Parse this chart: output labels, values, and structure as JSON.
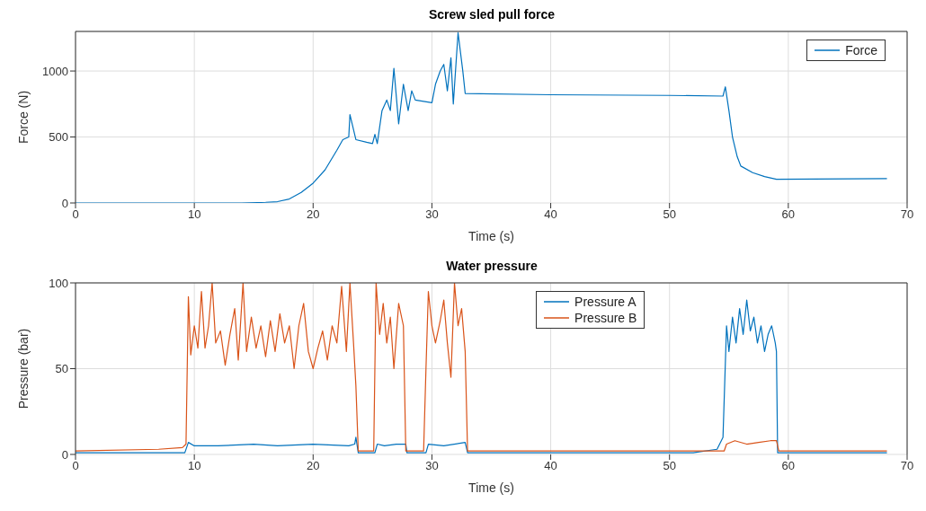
{
  "chart_data": [
    {
      "type": "line",
      "title": "Screw sled pull force",
      "xlabel": "Time (s)",
      "ylabel": "Force (N)",
      "xlim": [
        0,
        70
      ],
      "xticks": [
        0,
        10,
        20,
        30,
        40,
        50,
        60,
        70
      ],
      "ylim": [
        0,
        1300
      ],
      "yticks": [
        0,
        500,
        1000
      ],
      "grid": true,
      "legend": "top right",
      "series": [
        {
          "name": "Force",
          "color": "#0072bd",
          "x": [
            0,
            5,
            10,
            14,
            16,
            17,
            18,
            19,
            20,
            21,
            22,
            22.5,
            23,
            23.1,
            23.6,
            24.5,
            25,
            25.2,
            25.4,
            25.8,
            26.2,
            26.5,
            26.8,
            27.2,
            27.6,
            28,
            28.3,
            28.6,
            30,
            30.3,
            30.7,
            31,
            31.3,
            31.6,
            31.8,
            32.2,
            32.6,
            32.8,
            40,
            50,
            54.5,
            54.7,
            55,
            55.3,
            55.7,
            56,
            57,
            58,
            59,
            68.3
          ],
          "values": [
            0,
            0,
            0,
            0,
            5,
            10,
            30,
            80,
            150,
            250,
            400,
            480,
            500,
            670,
            480,
            460,
            450,
            520,
            450,
            700,
            780,
            700,
            1020,
            600,
            900,
            700,
            850,
            780,
            760,
            900,
            1000,
            1050,
            850,
            1100,
            750,
            1290,
            1000,
            830,
            820,
            815,
            810,
            880,
            700,
            500,
            350,
            280,
            230,
            200,
            180,
            185
          ]
        }
      ]
    },
    {
      "type": "line",
      "title": "Water pressure",
      "xlabel": "Time (s)",
      "ylabel": "Pressure (bar)",
      "xlim": [
        0,
        70
      ],
      "xticks": [
        0,
        10,
        20,
        30,
        40,
        50,
        60,
        70
      ],
      "ylim": [
        0,
        100
      ],
      "yticks": [
        0,
        50,
        100
      ],
      "grid": true,
      "legend": "top",
      "series": [
        {
          "name": "Pressure A",
          "color": "#0072bd",
          "x": [
            0,
            9.2,
            9.5,
            10,
            12,
            15,
            17,
            20,
            23,
            23.5,
            23.6,
            23.8,
            25.2,
            25.4,
            26,
            27,
            27.8,
            27.9,
            29.5,
            29.7,
            31,
            32.8,
            33,
            52,
            54,
            54.5,
            54.8,
            55,
            55.3,
            55.6,
            55.9,
            56.2,
            56.5,
            56.8,
            57.1,
            57.4,
            57.7,
            58,
            58.3,
            58.6,
            58.9,
            59,
            59.1,
            68.3
          ],
          "values": [
            1,
            1,
            7,
            5,
            5,
            6,
            5,
            6,
            5,
            6,
            10,
            1,
            1,
            6,
            5,
            6,
            6,
            1,
            1,
            6,
            5,
            7,
            1,
            1,
            3,
            10,
            75,
            60,
            80,
            65,
            85,
            70,
            90,
            72,
            80,
            65,
            75,
            60,
            70,
            75,
            65,
            60,
            1,
            1
          ]
        },
        {
          "name": "Pressure B",
          "color": "#d95319",
          "x": [
            0,
            7,
            9,
            9.3,
            9.5,
            9.7,
            10,
            10.3,
            10.6,
            10.9,
            11.2,
            11.5,
            11.8,
            12.2,
            12.6,
            13,
            13.4,
            13.7,
            14.1,
            14.4,
            14.8,
            15.2,
            15.6,
            16,
            16.4,
            16.8,
            17.2,
            17.6,
            18,
            18.4,
            18.8,
            19.2,
            19.6,
            20,
            20.4,
            20.8,
            21.2,
            21.6,
            22,
            22.4,
            22.8,
            23.1,
            23.4,
            23.6,
            23.8,
            25.1,
            25.3,
            25.6,
            25.9,
            26.2,
            26.5,
            26.8,
            27.2,
            27.6,
            27.8,
            29.3,
            29.5,
            29.7,
            30,
            30.3,
            30.7,
            31,
            31.3,
            31.6,
            31.9,
            32.2,
            32.5,
            32.8,
            33,
            54.6,
            54.8,
            55.5,
            56.5,
            57.5,
            58.5,
            59,
            59.2,
            68.3
          ],
          "values": [
            2,
            3,
            4,
            6,
            92,
            58,
            75,
            62,
            95,
            62,
            75,
            100,
            65,
            72,
            52,
            70,
            85,
            55,
            100,
            60,
            80,
            62,
            75,
            57,
            78,
            60,
            82,
            65,
            75,
            50,
            75,
            88,
            60,
            50,
            62,
            72,
            55,
            75,
            65,
            98,
            60,
            100,
            65,
            40,
            2,
            2,
            100,
            70,
            88,
            65,
            80,
            50,
            88,
            75,
            2,
            2,
            50,
            95,
            75,
            65,
            78,
            90,
            65,
            45,
            100,
            75,
            85,
            60,
            2,
            2,
            6,
            8,
            6,
            7,
            8,
            8,
            2,
            2
          ]
        }
      ]
    }
  ]
}
